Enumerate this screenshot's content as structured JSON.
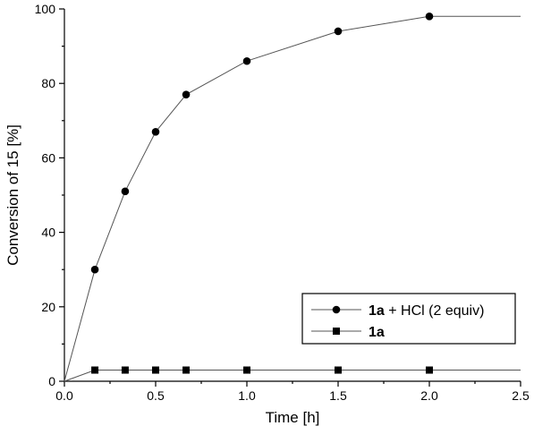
{
  "chart_data": {
    "type": "line",
    "xlabel": "Time [h]",
    "ylabel": "Conversion of 15 [%]",
    "xlim": [
      0,
      2.5
    ],
    "ylim": [
      0,
      100
    ],
    "xticks": [
      "0.0",
      "0.5",
      "1.0",
      "1.5",
      "2.0",
      "2.5"
    ],
    "yticks": [
      "0",
      "20",
      "40",
      "60",
      "80",
      "100"
    ],
    "legend_position": "bottom-right",
    "grid": false,
    "series": [
      {
        "name_bold": "1a",
        "name_rest": " + HCl (2 equiv)",
        "marker": "circle",
        "x": [
          0,
          0.167,
          0.333,
          0.5,
          0.667,
          1.0,
          1.5,
          2.0,
          2.5
        ],
        "y": [
          0,
          30,
          51,
          67,
          77,
          86,
          94,
          98,
          98
        ],
        "line_only_last": true
      },
      {
        "name_bold": "1a",
        "name_rest": "",
        "marker": "square",
        "x": [
          0,
          0.167,
          0.333,
          0.5,
          0.667,
          1.0,
          1.5,
          2.0,
          2.5
        ],
        "y": [
          0,
          3,
          3,
          3,
          3,
          3,
          3,
          3,
          3
        ],
        "line_only_last": true
      }
    ]
  }
}
